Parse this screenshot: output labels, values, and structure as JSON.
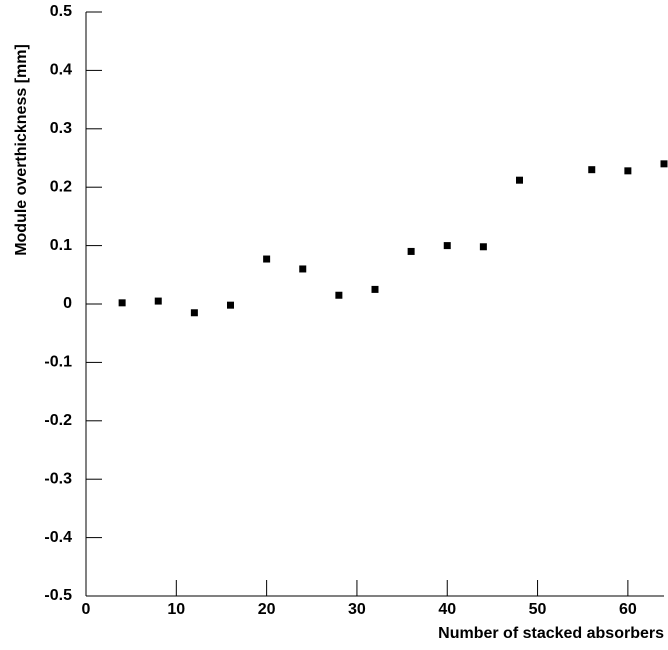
{
  "chart_data": {
    "type": "scatter",
    "x_label": "Number of stacked absorbers",
    "y_label": "Module overthickness [mm]",
    "x": [
      4,
      8,
      12,
      16,
      20,
      24,
      28,
      32,
      36,
      40,
      44,
      48,
      56,
      60,
      64
    ],
    "values": [
      0.002,
      0.005,
      -0.015,
      -0.002,
      0.077,
      0.06,
      0.015,
      0.025,
      0.09,
      0.1,
      0.098,
      0.212,
      0.23,
      0.228,
      0.24
    ],
    "color": "#000000",
    "xlim": [
      0,
      64
    ],
    "xticks": [
      0,
      10,
      20,
      30,
      40,
      50,
      60
    ],
    "ylim": [
      -0.5,
      0.5
    ],
    "yticks": [
      -0.5,
      -0.4,
      -0.3,
      -0.2,
      -0.1,
      0,
      0.1,
      0.2,
      0.3,
      0.4,
      0.5
    ],
    "grid": false
  }
}
